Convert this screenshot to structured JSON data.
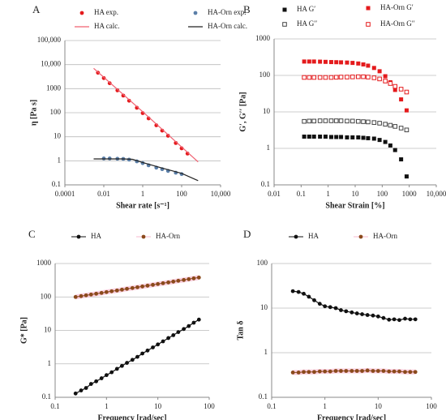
{
  "chart_data": [
    {
      "type": "line",
      "label": "A",
      "xlabel": "Shear rate [s⁻¹]",
      "ylabel": "η [Pa s]",
      "xlog": true,
      "ylog": true,
      "grid": true,
      "xlim": [
        0.0001,
        10000
      ],
      "ylim": [
        0.1,
        100000
      ],
      "xticks": [
        0.0001,
        0.01,
        1,
        100,
        {
          "value": 10000,
          "label": "10,000"
        }
      ],
      "yticks": [
        0.1,
        1,
        10,
        100,
        1000,
        {
          "value": 10000,
          "label": "10,000"
        },
        {
          "value": 100000,
          "label": "100,000"
        }
      ],
      "series": [
        {
          "name": "HA exp.",
          "color": "#e41a1c",
          "marker": "circle",
          "line": false,
          "x": [
            0.005,
            0.01,
            0.02,
            0.05,
            0.1,
            0.2,
            0.5,
            1,
            2,
            5,
            10,
            20,
            50,
            100,
            200
          ],
          "values": [
            4600,
            2750,
            1680,
            850,
            515,
            315,
            160,
            96,
            58,
            30,
            18,
            11,
            5.5,
            3.3,
            2
          ]
        },
        {
          "name": "HA calc.",
          "color": "#f06070",
          "marker": "none",
          "line": true,
          "x": [
            0.003,
            1,
            700
          ],
          "values": [
            7000,
            110,
            0.9
          ]
        },
        {
          "name": "HA-Orn exp.",
          "color": "#5b7fa8",
          "marker": "circle",
          "line": false,
          "x": [
            0.01,
            0.02,
            0.05,
            0.1,
            0.2,
            0.5,
            1,
            2,
            5,
            10,
            20,
            50,
            100
          ],
          "values": [
            1.25,
            1.25,
            1.22,
            1.2,
            1.12,
            0.95,
            0.8,
            0.65,
            0.52,
            0.45,
            0.38,
            0.32,
            0.28
          ]
        },
        {
          "name": "HA-Orn calc.",
          "color": "#222222",
          "marker": "none",
          "line": true,
          "x": [
            0.003,
            0.1,
            0.3,
            1,
            10,
            100,
            700
          ],
          "values": [
            1.2,
            1.2,
            1.15,
            0.85,
            0.5,
            0.3,
            0.15
          ]
        }
      ]
    },
    {
      "type": "line",
      "label": "B",
      "xlabel": "Shear Strain [%]",
      "ylabel": "G′, G′′ [Pa]",
      "xlog": true,
      "ylog": true,
      "grid": true,
      "xlim": [
        0.01,
        10000
      ],
      "ylim": [
        0.1,
        1000
      ],
      "xticks": [
        0.01,
        0.1,
        1,
        10,
        100,
        1000,
        {
          "value": 10000,
          "label": "10,000"
        }
      ],
      "yticks": [
        0.1,
        1,
        10,
        100,
        1000
      ],
      "series": [
        {
          "name": "HA G′",
          "color": "#111111",
          "marker": "square-filled",
          "line": false,
          "x": [
            0.13,
            0.2,
            0.3,
            0.5,
            0.8,
            1.3,
            2,
            3,
            5,
            8,
            13,
            20,
            30,
            50,
            80,
            130,
            200,
            300,
            500,
            800
          ],
          "values": [
            2.1,
            2.1,
            2.1,
            2.1,
            2.1,
            2.05,
            2.05,
            2.05,
            2.0,
            2.0,
            2.0,
            1.95,
            1.9,
            1.85,
            1.7,
            1.5,
            1.2,
            0.9,
            0.5,
            0.17
          ]
        },
        {
          "name": "HA G′′",
          "color": "#444444",
          "marker": "square-open",
          "line": false,
          "x": [
            0.13,
            0.2,
            0.3,
            0.5,
            0.8,
            1.3,
            2,
            3,
            5,
            8,
            13,
            20,
            30,
            50,
            80,
            130,
            200,
            300,
            500,
            800
          ],
          "values": [
            5.5,
            5.6,
            5.6,
            5.7,
            5.7,
            5.7,
            5.7,
            5.7,
            5.6,
            5.6,
            5.5,
            5.4,
            5.3,
            5.1,
            4.9,
            4.6,
            4.3,
            4.0,
            3.6,
            3.2
          ]
        },
        {
          "name": "HA-Orn G′",
          "color": "#e41a1c",
          "marker": "square-filled",
          "line": false,
          "x": [
            0.13,
            0.2,
            0.3,
            0.5,
            0.8,
            1.3,
            2,
            3,
            5,
            8,
            13,
            20,
            30,
            50,
            80,
            130,
            200,
            300,
            500,
            800
          ],
          "values": [
            240,
            240,
            240,
            238,
            235,
            232,
            230,
            228,
            225,
            220,
            212,
            200,
            185,
            160,
            130,
            95,
            65,
            40,
            22,
            11
          ]
        },
        {
          "name": "HA-Orn G′′",
          "color": "#e41a1c",
          "marker": "square-open",
          "line": false,
          "x": [
            0.13,
            0.2,
            0.3,
            0.5,
            0.8,
            1.3,
            2,
            3,
            5,
            8,
            13,
            20,
            30,
            50,
            80,
            130,
            200,
            300,
            500,
            800
          ],
          "values": [
            88,
            88,
            88,
            88,
            88,
            88,
            89,
            90,
            90,
            91,
            92,
            92,
            90,
            86,
            80,
            70,
            60,
            50,
            42,
            35
          ]
        }
      ]
    },
    {
      "type": "line",
      "label": "C",
      "xlabel": "Frequency [rad/sec]",
      "ylabel": "G* [Pa]",
      "xlog": true,
      "ylog": true,
      "grid": true,
      "xlim": [
        0.1,
        100
      ],
      "ylim": [
        0.1,
        1000
      ],
      "xticks": [
        0.1,
        1,
        10,
        100
      ],
      "yticks": [
        0.1,
        1,
        10,
        100,
        1000
      ],
      "series": [
        {
          "name": "HA",
          "color": "#111111",
          "marker": "circle",
          "line": true,
          "line_color": "#111111",
          "x": [
            0.25,
            0.32,
            0.4,
            0.5,
            0.63,
            0.8,
            1,
            1.26,
            1.6,
            2,
            2.5,
            3.2,
            4,
            5,
            6.3,
            8,
            10,
            12.6,
            16,
            20,
            25,
            32,
            40,
            50,
            63
          ],
          "values": [
            0.13,
            0.16,
            0.19,
            0.25,
            0.3,
            0.37,
            0.46,
            0.56,
            0.71,
            0.87,
            1.07,
            1.32,
            1.62,
            2.04,
            2.5,
            3.1,
            3.8,
            4.7,
            5.9,
            7.2,
            8.9,
            11,
            13.5,
            17,
            21
          ]
        },
        {
          "name": "HA-Orn",
          "color": "#8b4a1c",
          "marker": "circle",
          "line": true,
          "line_color": "#f7b8cf",
          "x": [
            0.25,
            0.32,
            0.4,
            0.5,
            0.63,
            0.8,
            1,
            1.26,
            1.6,
            2,
            2.5,
            3.2,
            4,
            5,
            6.3,
            8,
            10,
            12.6,
            16,
            20,
            25,
            32,
            40,
            50,
            63
          ],
          "values": [
            100,
            106,
            112,
            118,
            125,
            132,
            140,
            148,
            156,
            165,
            175,
            185,
            195,
            206,
            218,
            230,
            244,
            258,
            272,
            288,
            305,
            322,
            340,
            360,
            380
          ]
        }
      ]
    },
    {
      "type": "line",
      "label": "D",
      "xlabel": "Frequency [rad/sec]",
      "ylabel": "Tan δ",
      "xlog": true,
      "ylog": true,
      "grid": true,
      "xlim": [
        0.1,
        100
      ],
      "ylim": [
        0.1,
        100
      ],
      "xticks": [
        0.1,
        1,
        10,
        100
      ],
      "yticks": [
        0.1,
        1,
        10,
        100
      ],
      "series": [
        {
          "name": "HA",
          "color": "#111111",
          "marker": "circle",
          "line": true,
          "line_color": "#111111",
          "x": [
            0.25,
            0.32,
            0.4,
            0.5,
            0.63,
            0.8,
            1,
            1.26,
            1.6,
            2,
            2.5,
            3.2,
            4,
            5,
            6.3,
            8,
            10,
            12.6,
            16,
            20,
            25,
            32,
            40,
            50
          ],
          "values": [
            24,
            23,
            21,
            18,
            15,
            12.5,
            11,
            10.5,
            10,
            9,
            8.5,
            8,
            7.6,
            7.3,
            7,
            6.8,
            6.5,
            6,
            5.5,
            5.6,
            5.4,
            5.8,
            5.6,
            5.6
          ]
        },
        {
          "name": "HA-Orn",
          "color": "#8b4a1c",
          "marker": "circle",
          "line": true,
          "line_color": "#f7b8cf",
          "x": [
            0.25,
            0.32,
            0.4,
            0.5,
            0.63,
            0.8,
            1,
            1.26,
            1.6,
            2,
            2.5,
            3.2,
            4,
            5,
            6.3,
            8,
            10,
            12.6,
            16,
            20,
            25,
            32,
            40,
            50
          ],
          "values": [
            0.36,
            0.36,
            0.37,
            0.37,
            0.37,
            0.38,
            0.38,
            0.38,
            0.39,
            0.39,
            0.39,
            0.39,
            0.39,
            0.39,
            0.4,
            0.39,
            0.39,
            0.39,
            0.38,
            0.38,
            0.38,
            0.37,
            0.37,
            0.37
          ]
        }
      ]
    }
  ]
}
